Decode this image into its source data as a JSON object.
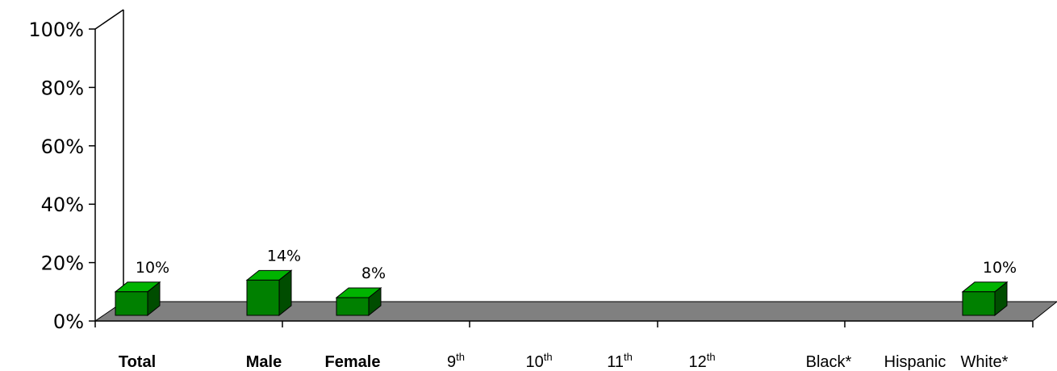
{
  "chart_data": {
    "type": "bar",
    "categories": [
      {
        "main": "Total",
        "sup": "",
        "bold": true
      },
      {
        "main": "Male",
        "sup": "",
        "bold": true
      },
      {
        "main": "Female",
        "sup": "",
        "bold": true
      },
      {
        "main": "9",
        "sup": "th",
        "bold": false
      },
      {
        "main": "10",
        "sup": "th",
        "bold": false
      },
      {
        "main": "11",
        "sup": "th",
        "bold": false
      },
      {
        "main": "12",
        "sup": "th",
        "bold": false
      },
      {
        "main": "Black*",
        "sup": "",
        "bold": false
      },
      {
        "main": "Hispanic",
        "sup": "",
        "bold": false
      },
      {
        "main": "White*",
        "sup": "",
        "bold": false
      }
    ],
    "values": [
      10,
      14,
      8,
      null,
      null,
      null,
      null,
      null,
      null,
      10
    ],
    "data_labels": [
      "10%",
      "14%",
      "8%",
      "",
      "",
      "",
      "",
      "",
      "",
      "10%"
    ],
    "y_ticks": [
      "0%",
      "20%",
      "40%",
      "60%",
      "80%",
      "100%"
    ],
    "ylim": [
      0,
      100
    ],
    "grid": false,
    "legend": "none",
    "colors": {
      "bar_front": "#008000",
      "bar_side": "#004d00",
      "bar_top": "#00b300",
      "floor": "#808080",
      "axis": "#000000"
    }
  }
}
